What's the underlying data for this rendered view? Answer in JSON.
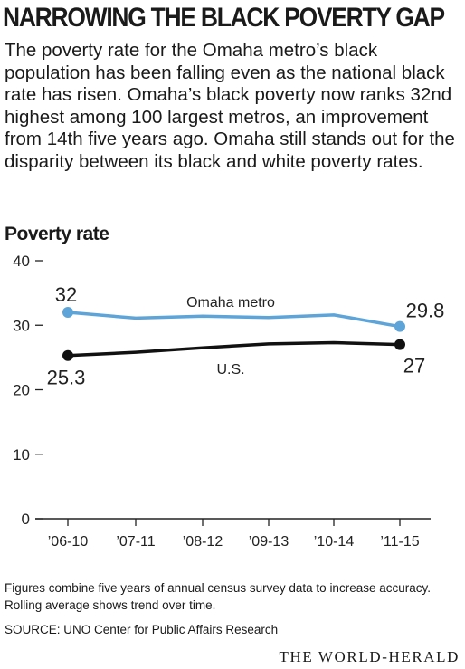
{
  "headline": "NARROWING THE BLACK POVERTY GAP",
  "dek": "The poverty rate for the Omaha metro’s black population has been falling even as the national black rate has risen. Omaha’s black poverty now ranks 32nd highest among 100 largest metros, an improvement from 14th five years ago. Omaha still stands out for the disparity between its black and white poverty rates.",
  "chart_label": "Poverty rate",
  "notes": "Figures  combine five years of annual census survey data to increase accuracy. Rolling average shows trend over time.",
  "source": "SOURCE: UNO Center for Public Affairs Research",
  "credit": "THE WORLD-HERALD",
  "chart_data": {
    "type": "line",
    "title": "",
    "xlabel": "",
    "ylabel": "",
    "categories": [
      "’06-10",
      "’07-11",
      "’08-12",
      "’09-13",
      "’10-14",
      "’11-15"
    ],
    "ylim": [
      0,
      40
    ],
    "yticks": [
      0,
      10,
      20,
      30,
      40
    ],
    "grid": false,
    "series": [
      {
        "name": "Omaha metro",
        "values": [
          32,
          31.1,
          31.4,
          31.2,
          31.6,
          29.8
        ],
        "color": "#5da4d8",
        "end_labels": [
          "32",
          "29.8"
        ]
      },
      {
        "name": "U.S.",
        "values": [
          25.3,
          25.8,
          26.5,
          27.1,
          27.3,
          27
        ],
        "color": "#111111",
        "end_labels": [
          "25.3",
          "27"
        ]
      }
    ]
  }
}
